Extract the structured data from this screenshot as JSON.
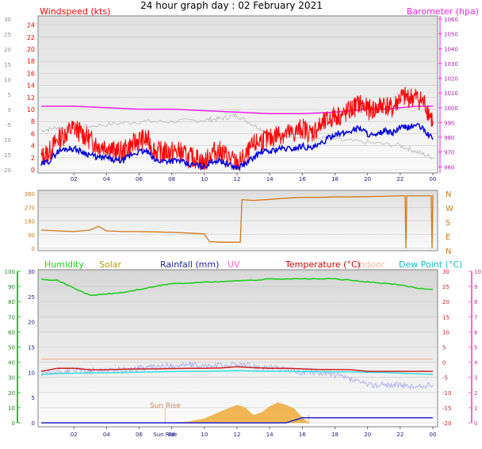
{
  "header": {
    "title": "24 hour graph day : 02 February 2021"
  },
  "colors": {
    "wind_speed": "#ff0000",
    "wind_avg": "#0000dd",
    "barometer": "#ee22ee",
    "grey_trace": "#c0c0c0",
    "wind_dir": "#d07818",
    "humidity": "#22cc22",
    "solar": "#f0b040",
    "rainfall": "#2222cc",
    "uv": "#ff66cc",
    "temperature": "#cc2222",
    "indoor": "#f4b8a0",
    "dew_point": "#33dddd",
    "lavender": "#b0b0f0"
  },
  "chart_data": [
    {
      "type": "line",
      "panel": "wind-barometer",
      "xlabel": "",
      "x_ticks": [
        "02",
        "04",
        "06",
        "08",
        "10",
        "12",
        "14",
        "16",
        "18",
        "20",
        "22",
        "00"
      ],
      "x_range_hours": [
        0,
        24
      ],
      "left_axis": {
        "label": "Windspeed (kts)",
        "ticks": [
          0,
          2,
          4,
          6,
          8,
          10,
          12,
          14,
          16,
          18,
          20,
          22,
          24
        ],
        "range": [
          0,
          25
        ]
      },
      "outer_left_axis": {
        "ticks": [
          -20,
          -15,
          -10,
          -5,
          0,
          5,
          10,
          15,
          20,
          25,
          30
        ],
        "range": [
          -20,
          30
        ]
      },
      "right_axis": {
        "label": "Barometer (hpa)",
        "ticks": [
          960,
          970,
          980,
          990,
          1000,
          1010,
          1020,
          1030,
          1040,
          1050,
          1060
        ],
        "range": [
          958,
          1060
        ]
      },
      "series": [
        {
          "name": "Barometer (hpa)",
          "axis": "right",
          "x": [
            0,
            2,
            4,
            6,
            8,
            10,
            12,
            14,
            16,
            18,
            19,
            20,
            21,
            22,
            23,
            24
          ],
          "y": [
            1001,
            1001,
            1000,
            999,
            999,
            998,
            997,
            996,
            996,
            997,
            998,
            999,
            999,
            1000,
            1001,
            1001
          ]
        },
        {
          "axis": "outer_left",
          "x": [
            0,
            1,
            2,
            4,
            6,
            8,
            10,
            11,
            12,
            13,
            14,
            16,
            18,
            20,
            22,
            23,
            24
          ],
          "y": [
            -7,
            -6,
            -6,
            -5,
            -4,
            -4,
            -3.5,
            -3,
            -2,
            -5,
            -8,
            -9,
            -10,
            -11,
            -12,
            -14,
            -16
          ]
        },
        {
          "name": "Windspeed (kts)",
          "axis": "left",
          "x": [
            0,
            0.5,
            1,
            1.5,
            2,
            2.5,
            3,
            3.5,
            4,
            4.5,
            5,
            5.5,
            6,
            6.5,
            7,
            7.5,
            8,
            8.5,
            9,
            9.5,
            10,
            10.5,
            11,
            11.5,
            12,
            12.5,
            13,
            13.5,
            14,
            14.5,
            15,
            15.5,
            16,
            16.5,
            17,
            17.5,
            18,
            18.5,
            19,
            19.5,
            20,
            20.5,
            21,
            21.5,
            22,
            22.5,
            23,
            23.5,
            24
          ],
          "y": [
            2,
            3,
            5,
            6,
            7,
            6,
            5,
            4,
            4,
            3,
            3,
            4,
            5,
            5,
            3,
            3,
            3,
            3,
            2,
            2,
            1,
            3,
            3,
            2,
            1,
            2,
            4,
            5,
            5,
            6,
            6,
            6,
            7,
            6,
            7,
            8,
            9,
            9,
            10,
            11,
            10,
            10,
            11,
            10,
            12,
            12,
            12,
            11,
            8
          ]
        },
        {
          "axis": "left",
          "x": [
            0,
            0.5,
            1,
            1.5,
            2,
            2.5,
            3,
            3.5,
            4,
            4.5,
            5,
            5.5,
            6,
            6.5,
            7,
            7.5,
            8,
            8.5,
            9,
            9.5,
            10,
            10.5,
            11,
            11.5,
            12,
            12.5,
            13,
            13.5,
            14,
            14.5,
            15,
            15.5,
            16,
            16.5,
            17,
            17.5,
            18,
            18.5,
            19,
            19.5,
            20,
            20.5,
            21,
            21.5,
            22,
            22.5,
            23,
            23.5,
            24
          ],
          "y": [
            0.8,
            1.5,
            3,
            3.5,
            3.5,
            3,
            2.5,
            2,
            2,
            1.5,
            1.5,
            2.5,
            3,
            3,
            1.5,
            1.5,
            1.5,
            1.5,
            0.8,
            0.8,
            0.5,
            1.5,
            1.5,
            0.8,
            0.3,
            1,
            2,
            3,
            3,
            3.5,
            3.5,
            3.5,
            4,
            3.5,
            4,
            5,
            6,
            6,
            6.5,
            7,
            6,
            5.5,
            6.5,
            6,
            7,
            7,
            7.5,
            6.5,
            5
          ]
        }
      ]
    },
    {
      "type": "line",
      "panel": "wind-direction",
      "left_axis": {
        "ticks": [
          0,
          90,
          180,
          270,
          360
        ],
        "range": [
          0,
          360
        ]
      },
      "right_axis": {
        "labels": [
          "N",
          "W",
          "S",
          "E",
          "N"
        ]
      },
      "series": [
        {
          "axis": "left",
          "x": [
            0,
            1,
            2,
            3,
            3.5,
            4,
            5,
            6,
            7,
            8,
            9,
            10,
            10.3,
            11,
            12,
            12.2,
            12.3,
            13,
            14,
            15,
            16,
            17,
            18,
            19,
            20,
            21,
            22,
            22.3,
            22.35,
            22.4,
            23,
            23.9,
            23.95,
            24
          ],
          "y": [
            120,
            115,
            110,
            120,
            145,
            115,
            110,
            110,
            108,
            105,
            100,
            95,
            45,
            40,
            40,
            40,
            320,
            315,
            322,
            330,
            335,
            335,
            338,
            338,
            340,
            342,
            345,
            345,
            0,
            345,
            345,
            345,
            0,
            350
          ]
        }
      ]
    },
    {
      "type": "line",
      "panel": "temperature-humidity",
      "left_axis": {
        "ticks": [
          0,
          10,
          20,
          30,
          40,
          50,
          60,
          70,
          80,
          90,
          100
        ],
        "range": [
          0,
          100
        ]
      },
      "second_left_axis": {
        "ticks": [
          0,
          5,
          10,
          15,
          20,
          25,
          30
        ],
        "range": [
          0,
          30
        ]
      },
      "right_axis": {
        "ticks": [
          -20,
          -15,
          -10,
          -5,
          0,
          5,
          10,
          15,
          20,
          25,
          30
        ],
        "range": [
          -20,
          30
        ]
      },
      "far_right_axis": {
        "ticks": [
          0,
          1,
          2,
          3,
          4,
          5,
          6,
          7,
          8,
          9,
          10
        ],
        "range": [
          0,
          10
        ]
      },
      "legend": [
        "Humidity",
        "Solar",
        "Rainfall (mm)",
        "UV",
        "Temperature (°C)",
        "Indoor",
        "Dew Point (°C)"
      ],
      "annotations": [
        "Sun Rise",
        "Sun Rise"
      ],
      "series": [
        {
          "name": "Humidity",
          "axis": "left",
          "x": [
            0,
            1,
            2,
            3,
            4,
            5,
            6,
            7,
            8,
            9,
            10,
            11,
            12,
            13,
            14,
            15,
            16,
            17,
            18,
            19,
            20,
            21,
            22,
            23,
            24
          ],
          "y": [
            95,
            94,
            89,
            84,
            85,
            86,
            88,
            90,
            92,
            92,
            93,
            93,
            94,
            94,
            95,
            95,
            95,
            95,
            95,
            94,
            93,
            92,
            91,
            89,
            88
          ]
        },
        {
          "name": "Indoor",
          "axis": "right",
          "x": [
            0,
            6,
            12,
            18,
            24
          ],
          "y": [
            1,
            1,
            1,
            1,
            1
          ]
        },
        {
          "name": "Temperature (°C)",
          "axis": "right",
          "x": [
            0,
            1,
            2,
            3,
            4,
            5,
            6,
            7,
            8,
            9,
            10,
            11,
            12,
            13,
            14,
            15,
            16,
            17,
            18,
            19,
            20,
            21,
            22,
            23,
            24
          ],
          "y": [
            -3,
            -2,
            -2,
            -2.5,
            -2.5,
            -2.3,
            -2.2,
            -2.2,
            -2.1,
            -2,
            -2,
            -1.9,
            -1.5,
            -1.8,
            -2,
            -2,
            -2.2,
            -2.4,
            -2.4,
            -2.5,
            -3,
            -3,
            -3,
            -3,
            -3
          ]
        },
        {
          "name": "Dew Point (°C)",
          "axis": "right",
          "x": [
            0,
            1,
            2,
            3,
            4,
            5,
            6,
            7,
            8,
            9,
            10,
            11,
            12,
            13,
            14,
            15,
            16,
            17,
            18,
            19,
            20,
            21,
            22,
            23,
            24
          ],
          "y": [
            -4,
            -3.8,
            -3.6,
            -3.5,
            -3.5,
            -3.4,
            -3.3,
            -3.2,
            -3.1,
            -3,
            -3,
            -2.9,
            -2.8,
            -2.9,
            -3,
            -3,
            -3.1,
            -3.1,
            -3.2,
            -3.2,
            -3.3,
            -3.4,
            -3.6,
            -3.8,
            -4
          ]
        },
        {
          "axis": "second_left",
          "x": [
            0,
            1,
            2,
            3,
            4,
            5,
            6,
            7,
            8,
            9,
            10,
            11,
            12,
            13,
            14,
            15,
            16,
            17,
            18,
            19,
            20,
            21,
            22,
            23,
            24
          ],
          "y": [
            9.5,
            10,
            10.5,
            10.2,
            10.5,
            10.5,
            10.8,
            11,
            11.3,
            11.5,
            11.2,
            11.3,
            11.5,
            11.2,
            11,
            10.5,
            10,
            10,
            9.5,
            8.5,
            7.5,
            7.5,
            7.5,
            7,
            7.5
          ]
        },
        {
          "name": "Solar",
          "axis": "second_left",
          "x": [
            7.6,
            8,
            9,
            10,
            11,
            12,
            12.5,
            13,
            13.5,
            14,
            14.5,
            15,
            15.5,
            16,
            16.4
          ],
          "y": [
            0,
            0,
            0.2,
            0.8,
            2.2,
            3.5,
            3,
            1.5,
            2,
            3.2,
            4,
            3.5,
            2.8,
            1,
            0
          ]
        },
        {
          "name": "Rainfall (mm)",
          "axis": "second_left",
          "x": [
            0,
            15,
            16,
            24
          ],
          "y": [
            0,
            0,
            1,
            1
          ]
        }
      ]
    }
  ]
}
